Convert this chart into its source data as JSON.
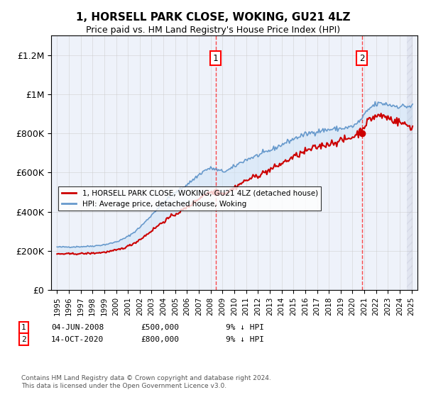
{
  "title": "1, HORSELL PARK CLOSE, WOKING, GU21 4LZ",
  "subtitle": "Price paid vs. HM Land Registry's House Price Index (HPI)",
  "legend1": "1, HORSELL PARK CLOSE, WOKING, GU21 4LZ (detached house)",
  "legend2": "HPI: Average price, detached house, Woking",
  "annotation1_date": "04-JUN-2008",
  "annotation1_price": "£500,000",
  "annotation1_hpi": "9% ↓ HPI",
  "annotation2_date": "14-OCT-2020",
  "annotation2_price": "£800,000",
  "annotation2_hpi": "9% ↓ HPI",
  "footnote": "Contains HM Land Registry data © Crown copyright and database right 2024.\nThis data is licensed under the Open Government Licence v3.0.",
  "sale1_year": 2008.42,
  "sale1_price": 500000,
  "sale2_year": 2020.79,
  "sale2_price": 800000,
  "line_color_red": "#cc0000",
  "line_color_blue": "#6699cc",
  "fill_color": "#d0e4f7",
  "background_color": "#eef2fa",
  "ylim_min": 0,
  "ylim_max": 1300000,
  "xlim_min": 1994.5,
  "xlim_max": 2025.5
}
